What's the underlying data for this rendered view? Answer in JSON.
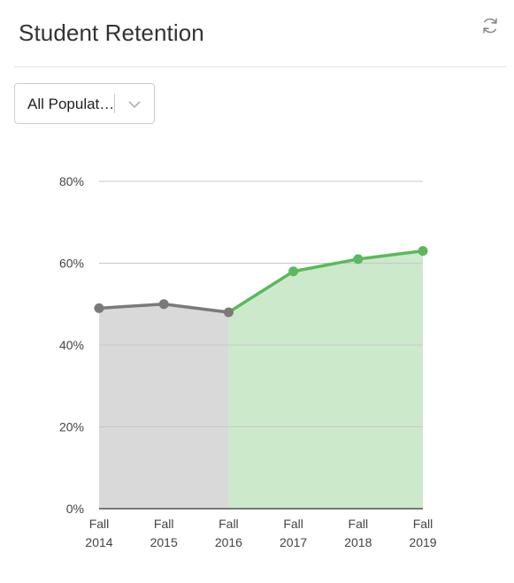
{
  "header": {
    "title": "Student Retention",
    "refresh_icon": "refresh-icon"
  },
  "filter": {
    "selected": "All Populat…",
    "chevron_icon": "chevron-down-icon"
  },
  "colors": {
    "historical_line": "#7a7a7a",
    "historical_fill": "#d9d9d9",
    "projection_line": "#5cb85c",
    "projection_fill": "#cde9cc",
    "gridline": "#c7c7c7",
    "axis": "#333333"
  },
  "chart_data": {
    "type": "area",
    "categories": [
      [
        "Fall",
        "2014"
      ],
      [
        "Fall",
        "2015"
      ],
      [
        "Fall",
        "2016"
      ],
      [
        "Fall",
        "2017"
      ],
      [
        "Fall",
        "2018"
      ],
      [
        "Fall",
        "2019"
      ]
    ],
    "values": [
      49,
      50,
      48,
      58,
      61,
      63
    ],
    "split_index": 2,
    "ylim": [
      0,
      80
    ],
    "yticks": [
      0,
      20,
      40,
      60,
      80
    ],
    "ytick_labels": [
      "0%",
      "20%",
      "40%",
      "60%",
      "80%"
    ],
    "grid": true,
    "title": "",
    "xlabel": "",
    "ylabel": ""
  }
}
